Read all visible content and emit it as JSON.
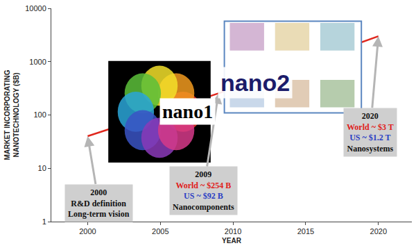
{
  "chart_data": {
    "type": "line",
    "x": [
      2000,
      2009,
      2020
    ],
    "values": [
      40,
      254,
      3000
    ],
    "color": "#e0281e",
    "log": "y",
    "grid": false,
    "xlim": [
      1997.5,
      2022.3
    ],
    "xticks": [
      2000,
      2005,
      2010,
      2015,
      2020
    ],
    "ylim": [
      1,
      10000
    ],
    "yticks": [
      1,
      10,
      100,
      1000,
      10000
    ],
    "xlabel": "YEAR",
    "ylabel": [
      "MARKET INCORPORATING",
      "NANOTECHNOLOGY ($B)"
    ],
    "insets": [
      "nano1",
      "nano2"
    ],
    "annotations": [
      {
        "x": 2000,
        "lines": [
          {
            "text": "2000"
          },
          {
            "text": "R&D definition"
          },
          {
            "text": "Long-term vision"
          }
        ]
      },
      {
        "x": 2009,
        "lines": [
          {
            "text": "2009"
          },
          {
            "text": "World ~ $254 B",
            "color": "#e0201b"
          },
          {
            "text": "US ~ $92 B",
            "color": "#2b3fc4"
          },
          {
            "text": "Nanocomponents"
          }
        ]
      },
      {
        "x": 2020,
        "lines": [
          {
            "text": "2020"
          },
          {
            "text": "World ~ $3 T",
            "color": "#e0201b"
          },
          {
            "text": "US ~ $1.2 T",
            "color": "#2b3fc4"
          },
          {
            "text": "Nanosystems"
          }
        ]
      }
    ]
  }
}
